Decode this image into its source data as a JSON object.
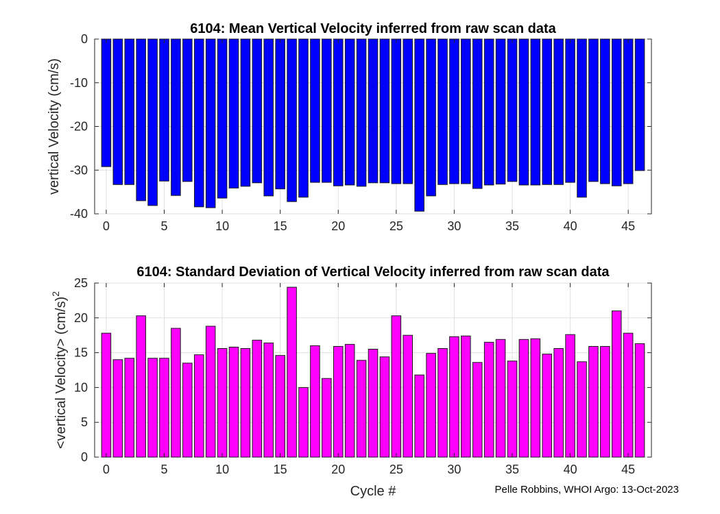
{
  "chart_data": [
    {
      "type": "bar",
      "title": "6104: Mean Vertical Velocity inferred from raw scan data",
      "xlabel": "",
      "ylabel": "vertical Velocity (cm/s)",
      "x": [
        0,
        1,
        2,
        3,
        4,
        5,
        6,
        7,
        8,
        9,
        10,
        11,
        12,
        13,
        14,
        15,
        16,
        17,
        18,
        19,
        20,
        21,
        22,
        23,
        24,
        25,
        26,
        27,
        28,
        29,
        30,
        31,
        32,
        33,
        34,
        35,
        36,
        37,
        38,
        39,
        40,
        41,
        42,
        43,
        44,
        45,
        46
      ],
      "values": [
        -29.2,
        -33.3,
        -33.3,
        -37,
        -38.1,
        -32.5,
        -35.8,
        -32.6,
        -38.4,
        -38.6,
        -36.4,
        -34.1,
        -33.7,
        -32.9,
        -35.9,
        -34.3,
        -37.2,
        -36.2,
        -32.8,
        -32.8,
        -33.6,
        -33.4,
        -33.7,
        -32.9,
        -32.9,
        -33.1,
        -33.1,
        -39.4,
        -35.9,
        -33.3,
        -33.1,
        -33.1,
        -34.2,
        -33.4,
        -33.2,
        -32.6,
        -33.4,
        -33.4,
        -33.3,
        -33.3,
        -32.8,
        -36.2,
        -32.6,
        -33.1,
        -33.6,
        -33.1,
        -30.1
      ],
      "xlim": [
        -1,
        47
      ],
      "ylim": [
        -40,
        0
      ],
      "xticks": [
        0,
        5,
        10,
        15,
        20,
        25,
        30,
        35,
        40,
        45
      ],
      "yticks": [
        0,
        -10,
        -20,
        -30,
        -40
      ],
      "grid": true,
      "color": "#0000ff"
    },
    {
      "type": "bar",
      "title": "6104: Standard Deviation of Vertical Velocity inferred from raw scan data",
      "xlabel": "Cycle #",
      "ylabel": "<vertical Velocity> (cm/s)",
      "ylabel_superscript": "2",
      "x": [
        0,
        1,
        2,
        3,
        4,
        5,
        6,
        7,
        8,
        9,
        10,
        11,
        12,
        13,
        14,
        15,
        16,
        17,
        18,
        19,
        20,
        21,
        22,
        23,
        24,
        25,
        26,
        27,
        28,
        29,
        30,
        31,
        32,
        33,
        34,
        35,
        36,
        37,
        38,
        39,
        40,
        41,
        42,
        43,
        44,
        45,
        46
      ],
      "values": [
        17.8,
        14,
        14.2,
        20.3,
        14.2,
        14.2,
        18.5,
        13.5,
        14.7,
        18.8,
        15.6,
        15.8,
        15.6,
        16.8,
        16.4,
        14.6,
        24.4,
        10,
        16,
        11.3,
        15.9,
        16.2,
        13.9,
        15.5,
        14.4,
        20.3,
        17.5,
        11.8,
        14.9,
        15.6,
        17.3,
        17.4,
        13.6,
        16.5,
        16.9,
        13.8,
        16.9,
        17,
        14.8,
        15.6,
        17.6,
        13.7,
        15.9,
        15.9,
        21,
        17.8,
        16.3
      ],
      "xlim": [
        -1,
        47
      ],
      "ylim": [
        0,
        25
      ],
      "xticks": [
        0,
        5,
        10,
        15,
        20,
        25,
        30,
        35,
        40,
        45
      ],
      "yticks": [
        0,
        5,
        10,
        15,
        20,
        25
      ],
      "grid": true,
      "color": "#ff00ff"
    }
  ],
  "credit": "Pelle Robbins, WHOI Argo: 13-Oct-2023"
}
